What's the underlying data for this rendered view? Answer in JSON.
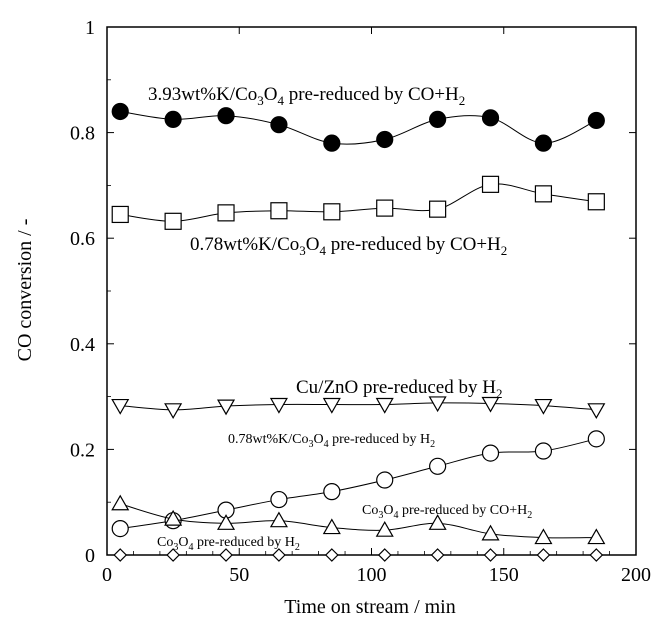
{
  "chart_data": {
    "type": "line",
    "xlabel": "Time on stream / min",
    "ylabel": "CO conversion / -",
    "xlim": [
      0,
      200
    ],
    "ylim": [
      0,
      1
    ],
    "xticks": [
      0,
      50,
      100,
      150,
      200
    ],
    "yticks": [
      0,
      0.2,
      0.4,
      0.6,
      0.8,
      1
    ],
    "ytick_labels": [
      "0",
      "0.2",
      "0.4",
      "0.6",
      "0.8",
      "1"
    ],
    "grid": false,
    "series": [
      {
        "name": "3.93wt%K/Co3O4 pre-reduced by CO+H2",
        "marker": "filled-circle",
        "x": [
          5,
          25,
          45,
          65,
          85,
          105,
          125,
          145,
          165,
          185
        ],
        "y": [
          0.84,
          0.825,
          0.832,
          0.815,
          0.78,
          0.787,
          0.825,
          0.828,
          0.78,
          0.823
        ]
      },
      {
        "name": "0.78wt%K/Co3O4 pre-reduced by CO+H2",
        "marker": "open-square",
        "x": [
          5,
          25,
          45,
          65,
          85,
          105,
          125,
          145,
          165,
          185
        ],
        "y": [
          0.645,
          0.632,
          0.648,
          0.652,
          0.65,
          0.657,
          0.655,
          0.702,
          0.684,
          0.669
        ]
      },
      {
        "name": "Cu/ZnO pre-reduced by H2",
        "marker": "open-triangle-down",
        "x": [
          5,
          25,
          45,
          65,
          85,
          105,
          125,
          145,
          165,
          185
        ],
        "y": [
          0.283,
          0.275,
          0.282,
          0.285,
          0.285,
          0.285,
          0.288,
          0.287,
          0.283,
          0.275
        ]
      },
      {
        "name": "0.78wt%K/Co3O4 pre-reduced by H2",
        "marker": "open-circle",
        "x": [
          5,
          25,
          45,
          65,
          85,
          105,
          125,
          145,
          165,
          185
        ],
        "y": [
          0.05,
          0.065,
          0.085,
          0.105,
          0.12,
          0.142,
          0.168,
          0.193,
          0.197,
          0.22
        ]
      },
      {
        "name": "Co3O4 pre-reduced by CO+H2",
        "marker": "open-triangle-up",
        "x": [
          5,
          25,
          45,
          65,
          85,
          105,
          125,
          145,
          165,
          185
        ],
        "y": [
          0.097,
          0.068,
          0.06,
          0.065,
          0.052,
          0.047,
          0.06,
          0.04,
          0.033,
          0.033
        ]
      },
      {
        "name": "Co3O4 pre-reduced by H2",
        "marker": "open-diamond",
        "x": [
          5,
          25,
          45,
          65,
          85,
          105,
          125,
          145,
          165,
          185
        ],
        "y": [
          0.0,
          0.0,
          0.0,
          0.0,
          0.0,
          0.0,
          0.0,
          0.0,
          0.0,
          0.0
        ]
      }
    ]
  }
}
